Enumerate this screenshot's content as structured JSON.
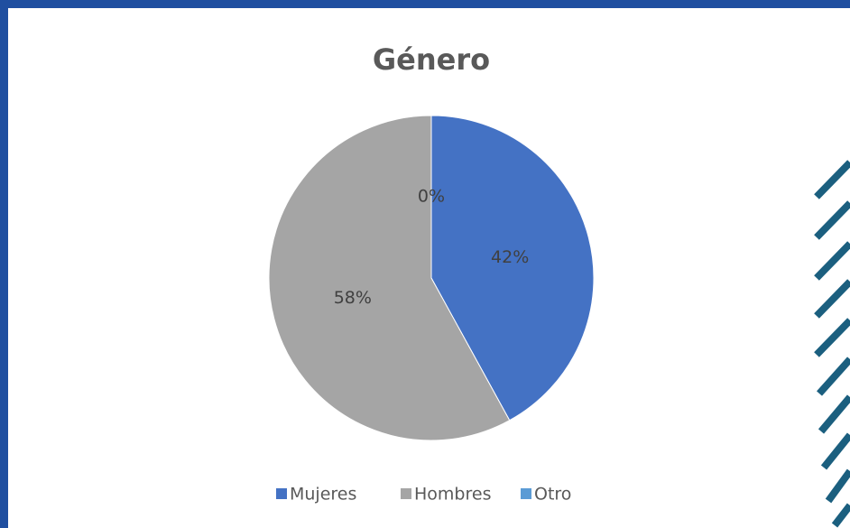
{
  "chart_data": {
    "type": "pie",
    "title": "Género",
    "categories": [
      "Mujeres",
      "Hombres",
      "Otro"
    ],
    "values": [
      42,
      58,
      0
    ],
    "value_labels": [
      "42%",
      "58%",
      "0%"
    ],
    "colors": [
      "#4472c4",
      "#a5a5a5",
      "#5b9bd5"
    ],
    "legend": "bottom"
  }
}
